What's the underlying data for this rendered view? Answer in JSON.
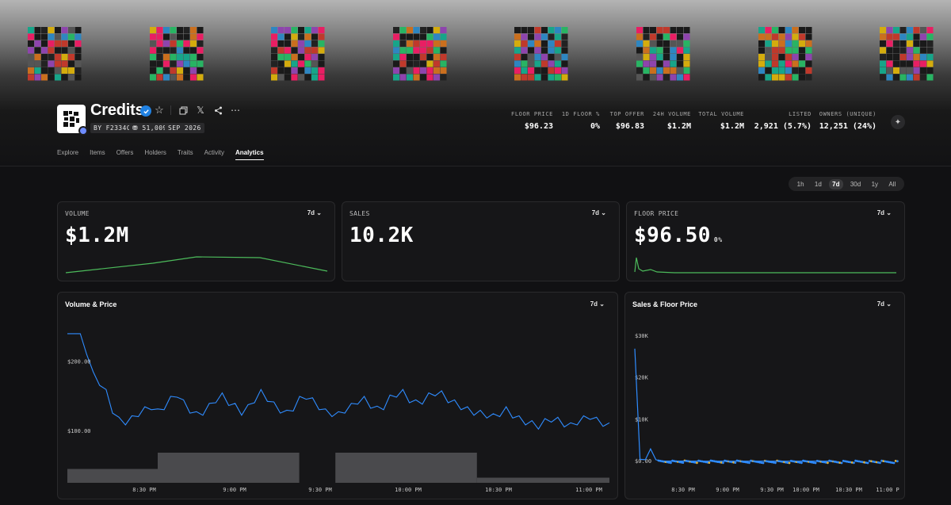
{
  "banner": {
    "tiles": 8
  },
  "header": {
    "title": "Credits",
    "creator": "BY F2334C",
    "items": "51,009",
    "created": "SEP 2026"
  },
  "stats": [
    {
      "label": "FLOOR PRICE",
      "value": "$96.23"
    },
    {
      "label": "1D FLOOR %",
      "value": "0%"
    },
    {
      "label": "TOP OFFER",
      "value": "$96.83"
    },
    {
      "label": "24H VOLUME",
      "value": "$1.2M"
    },
    {
      "label": "TOTAL VOLUME",
      "value": "$1.2M"
    },
    {
      "label": "LISTED",
      "value": "2,921 (5.7%)"
    },
    {
      "label": "OWNERS (UNIQUE)",
      "value": "12,251 (24%)"
    }
  ],
  "tabs": [
    "Explore",
    "Items",
    "Offers",
    "Holders",
    "Traits",
    "Activity",
    "Analytics"
  ],
  "active_tab": "Analytics",
  "time_range": {
    "options": [
      "1h",
      "1d",
      "7d",
      "30d",
      "1y",
      "All"
    ],
    "selected": "7d"
  },
  "cards": {
    "volume": {
      "label": "VOLUME",
      "period": "7d",
      "value": "$1.2M"
    },
    "sales": {
      "label": "SALES",
      "period": "7d",
      "value": "10.2K"
    },
    "floor": {
      "label": "FLOOR PRICE",
      "period": "7d",
      "value": "$96.50",
      "change": "0%"
    }
  },
  "colors": {
    "accent_line": "#2f8cff",
    "sparkline": "#4cbb5b",
    "volume_bars": "#4a4a4d"
  },
  "chart_data": [
    {
      "type": "line",
      "title": "Volume & Price",
      "period": "7d",
      "y_ticks": [
        "$200.00",
        "$100.00"
      ],
      "x_ticks": [
        "8:30 PM",
        "9:00 PM",
        "9:30 PM",
        "10:00 PM",
        "10:30 PM",
        "11:00 PM"
      ],
      "ylim": [
        30,
        270
      ],
      "x_range_minutes": [
        0,
        180
      ],
      "series": [
        {
          "values": [
            245,
            245,
            245,
            215,
            190,
            175,
            160,
            135,
            120,
            118,
            122,
            130,
            135,
            140,
            132,
            140,
            150,
            158,
            145,
            135,
            128,
            132,
            140,
            150,
            155,
            146,
            140,
            132,
            138,
            150,
            160,
            152,
            142,
            135,
            130,
            138,
            150,
            155,
            148,
            140,
            132,
            130,
            128,
            135,
            140,
            148,
            150,
            142,
            136,
            140,
            152,
            158,
            160,
            150,
            145,
            148,
            155,
            160,
            158,
            150,
            145,
            140,
            135,
            132,
            130,
            128,
            125,
            130,
            135,
            128,
            122,
            118,
            115,
            112,
            118,
            122,
            120,
            115,
            112,
            118,
            122,
            126,
            120,
            116,
            112
          ]
        }
      ],
      "volume_bars": [
        {
          "x_start": 0,
          "x_end": 30,
          "v": 0.46
        },
        {
          "x_start": 30,
          "x_end": 77,
          "v": 1.0
        },
        {
          "x_start": 89,
          "x_end": 136,
          "v": 1.0
        },
        {
          "x_start": 136,
          "x_end": 180,
          "v": 0.17
        }
      ]
    },
    {
      "type": "scatter",
      "title": "Sales & Floor Price",
      "period": "7d",
      "y_ticks": [
        "$30K",
        "$20K",
        "$10K",
        "$0.00"
      ],
      "ylim": [
        0,
        30000
      ],
      "x_ticks": [
        "8:30 PM",
        "9:00 PM",
        "9:30 PM",
        "10:00 PM",
        "10:30 PM",
        "11:00 P"
      ],
      "series": [
        {
          "values": [
            27000,
            500,
            400,
            3000,
            400,
            100,
            80,
            70,
            60,
            60,
            55,
            55,
            50,
            50,
            50,
            50
          ]
        }
      ]
    }
  ]
}
